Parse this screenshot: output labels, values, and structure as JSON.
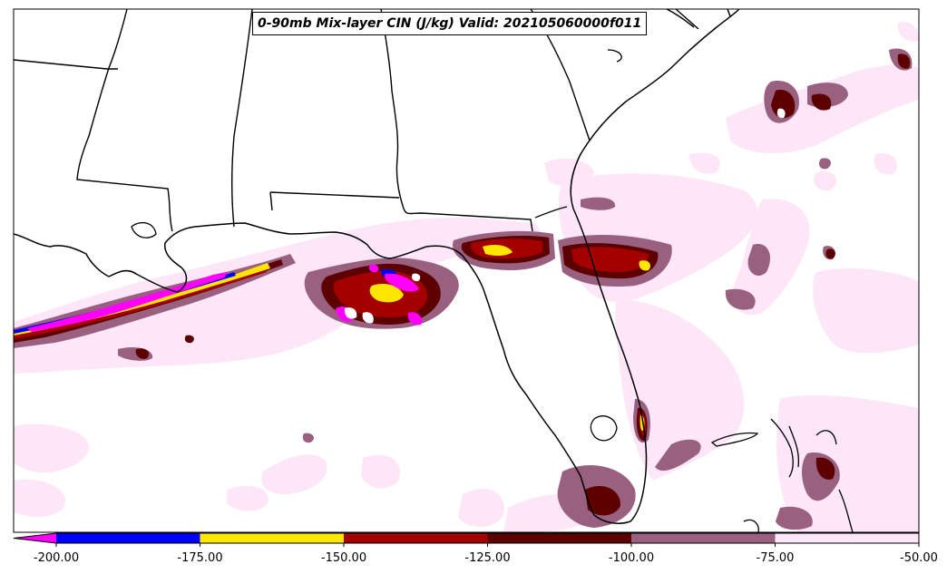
{
  "title": "0-90mb Mix-layer CIN (J/kg) Valid: 202105060000f011",
  "colorbar": {
    "ticks": [
      "-200.00",
      "-175.00",
      "-150.00",
      "-125.00",
      "-100.00",
      "-75.00",
      "-50.00"
    ],
    "extend_color": "#ff00ff",
    "bins": [
      {
        "from": -200,
        "to": -175,
        "color": "#0000ff"
      },
      {
        "from": -175,
        "to": -150,
        "color": "#ffe600"
      },
      {
        "from": -150,
        "to": -125,
        "color": "#a50000"
      },
      {
        "from": -125,
        "to": -100,
        "color": "#5c0000"
      },
      {
        "from": -100,
        "to": -75,
        "color": "#9a6080"
      },
      {
        "from": -75,
        "to": -50,
        "color": "#fce6f8"
      }
    ]
  }
}
